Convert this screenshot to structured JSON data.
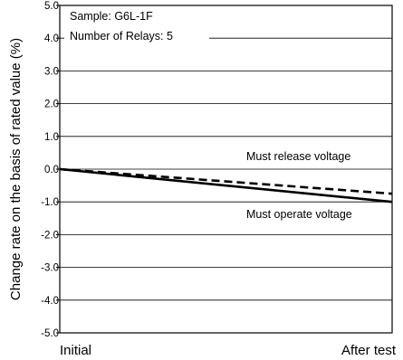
{
  "chart_data": {
    "type": "line",
    "ylabel": "Change rate on the basis of rated value (%)",
    "xlabel": "",
    "categories": [
      "Initial",
      "After test"
    ],
    "ylim": [
      -5.0,
      5.0
    ],
    "yticks": [
      5.0,
      4.0,
      3.0,
      2.0,
      1.0,
      0.0,
      -1.0,
      -2.0,
      -3.0,
      -4.0,
      -5.0
    ],
    "ytick_labels": [
      "5.0",
      "4.0",
      "3.0",
      "2.0",
      "1.0",
      "0.0",
      "-1.0",
      "-2.0",
      "-3.0",
      "-4.0",
      "-5.0"
    ],
    "grid": "horizontal",
    "annotations": [
      "Sample: G6L-1F",
      "Number of Relays: 5"
    ],
    "series": [
      {
        "name": "Must release voltage",
        "values": [
          0.0,
          -0.75
        ],
        "style": "dashed",
        "color": "#000000"
      },
      {
        "name": "Must operate voltage",
        "values": [
          0.0,
          -1.0
        ],
        "style": "solid",
        "color": "#000000"
      }
    ]
  }
}
